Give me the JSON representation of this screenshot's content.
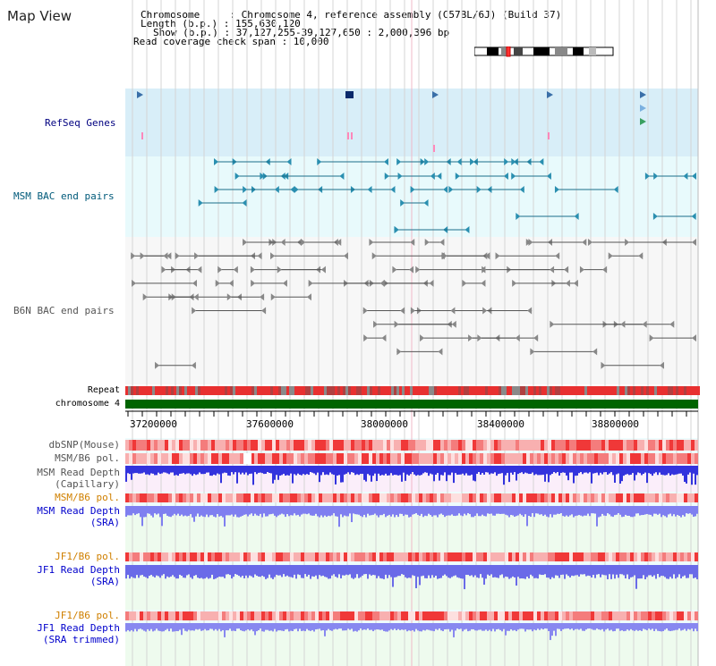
{
  "title": "Map View",
  "info": {
    "chromosome": "Chromosome     : Chromosome 4, reference assembly (C57BL/6J) (Build 37)",
    "length": "Length (b.p.) : 155,630,120",
    "show": "Show (b.p.) : 37,127,255-39,127,650 : 2,000,396 bp",
    "read_span": "Read coverage check span : 10,000"
  },
  "tracks": {
    "refseq": "RefSeq Genes",
    "msm_bac": "MSM BAC end pairs",
    "b6n_bac": "B6N BAC end pairs",
    "repeat": "Repeat",
    "chromosome": "chromosome 4",
    "dbsnp": "dbSNP(Mouse)",
    "msm_b6_pol_1": "MSM/B6 pol.",
    "msm_depth_cap_1": "MSM Read Depth",
    "msm_depth_cap_2": "(Capillary)",
    "msm_b6_pol_2": "MSM/B6 pol.",
    "msm_depth_sra_1": "MSM Read Depth",
    "msm_depth_sra_2": "(SRA)",
    "jf1_b6_pol_1": "JF1/B6 pol.",
    "jf1_depth_sra_1": "JF1 Read Depth",
    "jf1_depth_sra_2": "(SRA)",
    "jf1_b6_pol_2": "JF1/B6 pol.",
    "jf1_depth_trim_1": "JF1 Read Depth",
    "jf1_depth_trim_2": "(SRA trimmed)"
  },
  "axis_ticks": [
    "37200000",
    "37600000",
    "38000000",
    "38400000",
    "38800000"
  ],
  "colors": {
    "refseq_label": "#000080",
    "msm_bac_label": "#005a7a",
    "b6n_label": "#555555",
    "pol_orange": "#d08000",
    "depth_blue": "#0000cc",
    "chrom_green": "#006400",
    "repeat_red": "#dd2222"
  }
}
